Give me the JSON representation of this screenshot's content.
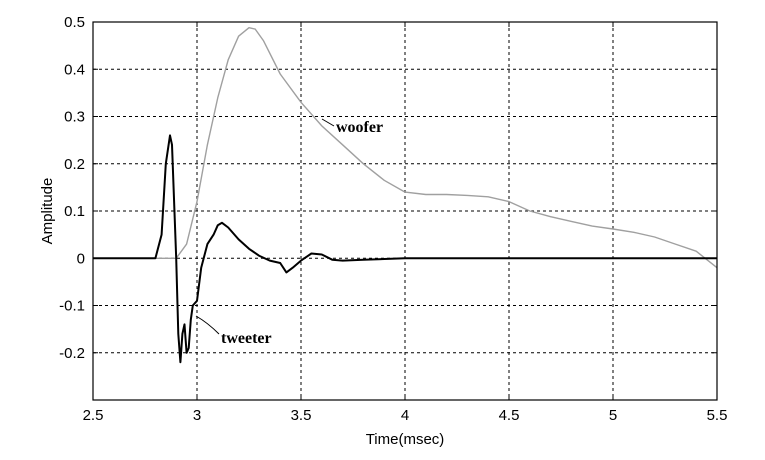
{
  "chart_data": {
    "type": "line",
    "xlabel": "Time(msec)",
    "ylabel": "Amplitude",
    "xlim": [
      2.5,
      5.5
    ],
    "ylim": [
      -0.3,
      0.5
    ],
    "x_ticks": [
      2.5,
      3,
      3.5,
      4,
      4.5,
      5,
      5.5
    ],
    "x_tick_labels": [
      "2.5",
      "3",
      "3.5",
      "4",
      "4.5",
      "5",
      "5.5"
    ],
    "y_ticks": [
      -0.2,
      -0.1,
      0,
      0.1,
      0.2,
      0.3,
      0.4,
      0.5
    ],
    "y_tick_labels": [
      "-0.2",
      "-0.1",
      "0",
      "0.1",
      "0.2",
      "0.3",
      "0.4",
      "0.5"
    ],
    "grid": "dashed",
    "legend": "none",
    "annotations": [
      {
        "text": "woofer",
        "series": "woofer"
      },
      {
        "text": "tweeter",
        "series": "tweeter"
      }
    ],
    "series": [
      {
        "name": "woofer",
        "color": "#a0a0a0",
        "x": [
          2.5,
          2.9,
          2.95,
          3.0,
          3.05,
          3.1,
          3.15,
          3.2,
          3.25,
          3.28,
          3.32,
          3.4,
          3.5,
          3.6,
          3.7,
          3.8,
          3.9,
          4.0,
          4.1,
          4.2,
          4.3,
          4.4,
          4.5,
          4.6,
          4.7,
          4.8,
          4.9,
          5.0,
          5.1,
          5.2,
          5.3,
          5.4,
          5.5
        ],
        "y": [
          0.0,
          0.0,
          0.03,
          0.12,
          0.24,
          0.34,
          0.42,
          0.47,
          0.488,
          0.485,
          0.46,
          0.39,
          0.33,
          0.28,
          0.24,
          0.2,
          0.165,
          0.14,
          0.135,
          0.135,
          0.133,
          0.13,
          0.12,
          0.1,
          0.088,
          0.078,
          0.068,
          0.062,
          0.055,
          0.045,
          0.03,
          0.015,
          -0.02
        ]
      },
      {
        "name": "tweeter",
        "color": "#000000",
        "x": [
          2.5,
          2.8,
          2.83,
          2.85,
          2.87,
          2.88,
          2.9,
          2.91,
          2.92,
          2.93,
          2.94,
          2.95,
          2.96,
          2.97,
          2.98,
          3.0,
          3.02,
          3.05,
          3.08,
          3.1,
          3.12,
          3.15,
          3.2,
          3.25,
          3.3,
          3.35,
          3.4,
          3.43,
          3.46,
          3.5,
          3.55,
          3.6,
          3.65,
          3.7,
          3.8,
          4.0,
          4.2,
          4.4,
          4.6,
          4.8,
          5.0,
          5.2,
          5.4,
          5.5
        ],
        "y": [
          0.0,
          0.0,
          0.05,
          0.2,
          0.26,
          0.24,
          0.0,
          -0.16,
          -0.22,
          -0.16,
          -0.14,
          -0.2,
          -0.19,
          -0.13,
          -0.1,
          -0.09,
          -0.02,
          0.03,
          0.05,
          0.07,
          0.075,
          0.065,
          0.04,
          0.02,
          0.005,
          -0.005,
          -0.01,
          -0.03,
          -0.02,
          -0.005,
          0.01,
          0.008,
          -0.003,
          -0.005,
          -0.003,
          0.0,
          0.0,
          0.0,
          0.0,
          0.0,
          0.0,
          0.0,
          0.0,
          0.0
        ]
      }
    ]
  }
}
